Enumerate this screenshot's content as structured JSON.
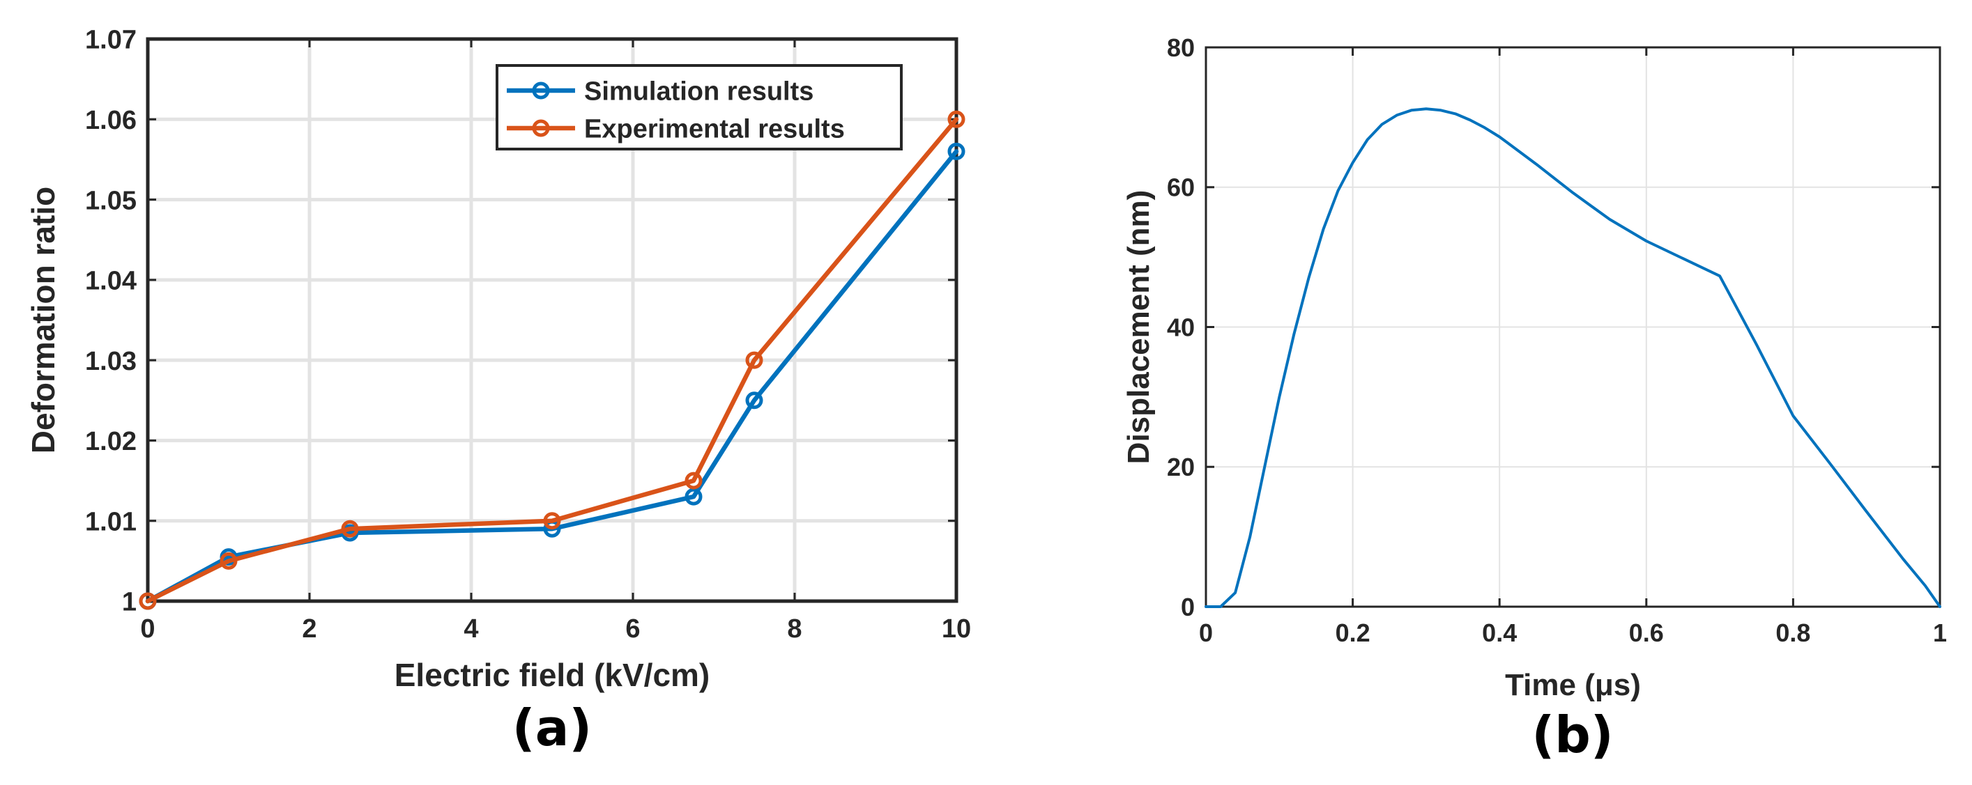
{
  "chart_data": [
    {
      "type": "line",
      "panel_label": "(a)",
      "title": "",
      "xlabel": "Electric field (kV/cm)",
      "ylabel": "Deformation ratio",
      "xlim": [
        0,
        10
      ],
      "ylim": [
        1,
        1.07
      ],
      "xticks": [
        0,
        2,
        4,
        6,
        8,
        10
      ],
      "yticks": [
        1,
        1.01,
        1.02,
        1.03,
        1.04,
        1.05,
        1.06,
        1.07
      ],
      "xtick_labels": [
        "0",
        "2",
        "4",
        "6",
        "8",
        "10"
      ],
      "ytick_labels": [
        "1",
        "1.01",
        "1.02",
        "1.03",
        "1.04",
        "1.05",
        "1.06",
        "1.07"
      ],
      "grid": true,
      "legend": "top-right",
      "series": [
        {
          "name": "Simulation results",
          "color": "#0072BD",
          "marker": "circle",
          "x": [
            0,
            1,
            2.5,
            5,
            6.75,
            7.5,
            10
          ],
          "y": [
            1.0,
            1.0055,
            1.0085,
            1.009,
            1.013,
            1.025,
            1.056
          ]
        },
        {
          "name": "Experimental results",
          "color": "#D95319",
          "marker": "circle",
          "x": [
            0,
            1,
            2.5,
            5,
            6.75,
            7.5,
            10
          ],
          "y": [
            1.0,
            1.005,
            1.009,
            1.01,
            1.015,
            1.03,
            1.06
          ]
        }
      ]
    },
    {
      "type": "line",
      "panel_label": "(b)",
      "title": "",
      "xlabel": "Time (μs)",
      "ylabel": "Displacement (nm)",
      "xlim": [
        0,
        1
      ],
      "ylim": [
        0,
        80
      ],
      "xticks": [
        0,
        0.2,
        0.4,
        0.6,
        0.8,
        1
      ],
      "yticks": [
        0,
        20,
        40,
        60,
        80
      ],
      "xtick_labels": [
        "0",
        "0.2",
        "0.4",
        "0.6",
        "0.8",
        "1"
      ],
      "ytick_labels": [
        "0",
        "20",
        "40",
        "60",
        "80"
      ],
      "grid": true,
      "legend": "none",
      "series": [
        {
          "color": "#0072BD",
          "marker": "none",
          "x": [
            0,
            0.02,
            0.04,
            0.06,
            0.08,
            0.1,
            0.12,
            0.14,
            0.16,
            0.18,
            0.2,
            0.22,
            0.24,
            0.26,
            0.28,
            0.3,
            0.32,
            0.34,
            0.36,
            0.38,
            0.4,
            0.45,
            0.5,
            0.55,
            0.6,
            0.65,
            0.7,
            0.75,
            0.8,
            0.85,
            0.9,
            0.95,
            0.98,
            1.0
          ],
          "y": [
            0,
            0,
            2,
            10,
            20,
            30,
            39,
            47,
            54,
            59.5,
            63.5,
            66.8,
            69,
            70.3,
            71,
            71.2,
            71,
            70.5,
            69.6,
            68.5,
            67.2,
            63.3,
            59.2,
            55.4,
            52.3,
            49.8,
            47.3,
            37.5,
            27.3,
            20.5,
            13.6,
            6.8,
            3,
            0
          ]
        }
      ]
    }
  ]
}
